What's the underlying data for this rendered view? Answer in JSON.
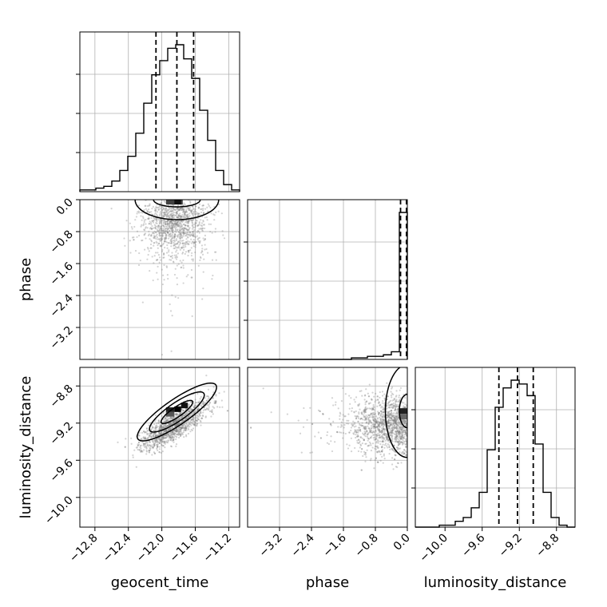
{
  "chart_data": {
    "type": "corner",
    "parameters": [
      "geocent_time",
      "phase",
      "luminosity_distance"
    ],
    "ranges": {
      "geocent_time": [
        -12.98,
        -11.07
      ],
      "phase": [
        -4.0,
        0.0
      ],
      "luminosity_distance": [
        -10.32,
        -8.6
      ]
    },
    "ticks": {
      "geocent_time": [
        "-12.8",
        "-12.4",
        "-12.0",
        "-11.6",
        "-11.2"
      ],
      "phase": [
        "-3.2",
        "-2.4",
        "-1.6",
        "-0.8",
        "0.0"
      ],
      "luminosity_distance": [
        "-10.0",
        "-9.6",
        "-9.2",
        "-8.8"
      ]
    },
    "quantiles": {
      "geocent_time": [
        -12.07,
        -11.82,
        -11.62
      ],
      "phase": [
        -0.17,
        0.0,
        0.0
      ],
      "luminosity_distance": [
        -9.42,
        -9.22,
        -9.05
      ]
    },
    "histograms": {
      "geocent_time": {
        "edges_range": [
          -12.98,
          -11.07
        ],
        "counts": [
          1,
          1,
          2,
          3,
          6,
          12,
          20,
          33,
          50,
          66,
          74,
          81,
          83,
          75,
          64,
          46,
          29,
          12,
          4,
          1
        ]
      },
      "phase": {
        "edges_range": [
          -4.0,
          0.0
        ],
        "counts": [
          0,
          0,
          0,
          0,
          0,
          0,
          0,
          0,
          0,
          0,
          0,
          0,
          0,
          1,
          1,
          2,
          2,
          3,
          5,
          96
        ]
      },
      "luminosity_distance": {
        "edges_range": [
          -10.32,
          -8.6
        ],
        "counts": [
          0,
          0,
          0,
          1,
          1,
          3,
          5,
          10,
          18,
          40,
          62,
          72,
          76,
          74,
          68,
          43,
          18,
          5,
          1,
          0
        ]
      }
    },
    "grid": true,
    "colors": {
      "line": "#000000",
      "scatter": "#808080",
      "grid": "#b0b0b0"
    }
  }
}
